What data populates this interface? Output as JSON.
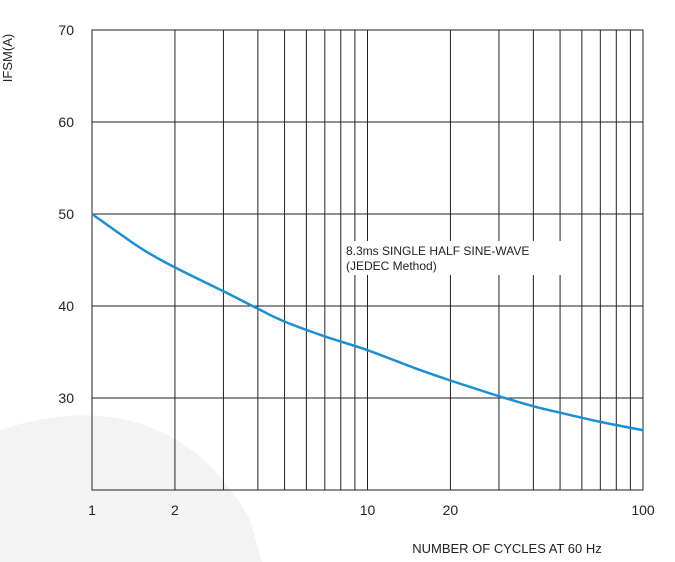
{
  "chart_data": {
    "type": "line",
    "title": "",
    "xlabel": "NUMBER OF CYCLES AT 60 Hz",
    "ylabel": "IFSM(A)",
    "x_scale": "log",
    "xlim": [
      1,
      100
    ],
    "ylim": [
      20,
      70
    ],
    "grid": true,
    "x_tick_labels": [
      "1",
      "2",
      "10",
      "20",
      "100"
    ],
    "x_tick_values": [
      1,
      2,
      10,
      20,
      100
    ],
    "y_tick_labels": [
      "30",
      "40",
      "50",
      "60",
      "70"
    ],
    "y_tick_values": [
      30,
      40,
      50,
      60,
      70
    ],
    "annotation": [
      "8.3ms SINGLE HALF SINE-WAVE",
      "(JEDEC Method)"
    ],
    "series": [
      {
        "color": "#1a8fd6",
        "x": [
          1,
          1.5,
          2,
          3,
          4,
          5,
          7,
          10,
          15,
          20,
          30,
          40,
          50,
          70,
          100
        ],
        "y": [
          50,
          46.3,
          44.2,
          41.6,
          39.7,
          38.3,
          36.7,
          35.2,
          33.2,
          31.9,
          30.2,
          29.1,
          28.4,
          27.4,
          26.5
        ]
      }
    ]
  }
}
